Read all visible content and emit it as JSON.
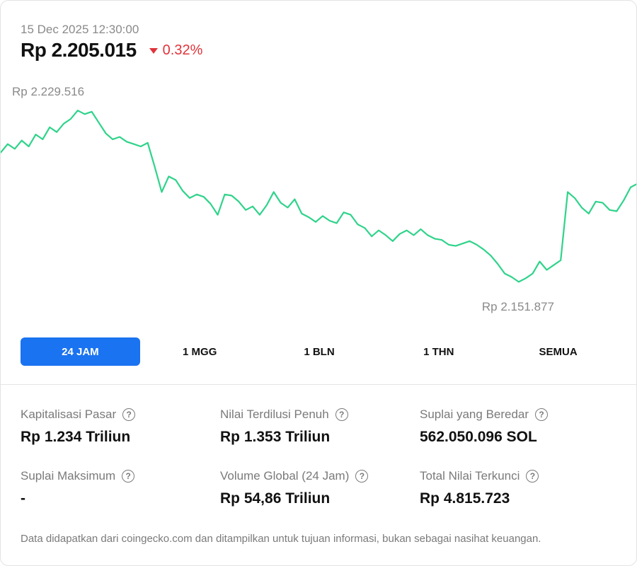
{
  "header": {
    "timestamp": "15 Dec 2025 12:30:00",
    "price": "Rp 2.205.015",
    "change": "0.32%",
    "change_direction": "down",
    "change_color": "#e0343b"
  },
  "chart_data": {
    "type": "line",
    "x_range": [
      "15 Dec 2025 12:30:00 minus 24h",
      "15 Dec 2025 12:30:00"
    ],
    "ylim": [
      2151877,
      2229516
    ],
    "line_color": "#2fd38a",
    "annotations": {
      "high": "Rp 2.229.516",
      "low": "Rp 2.151.877"
    },
    "series": [
      {
        "values": [
          2209000,
          2212500,
          2210500,
          2214000,
          2211500,
          2216500,
          2214500,
          2219500,
          2217500,
          2221000,
          2223000,
          2226500,
          2225000,
          2226000,
          2221500,
          2217000,
          2214500,
          2215500,
          2213500,
          2212500,
          2211500,
          2213000,
          2203000,
          2192500,
          2199000,
          2197500,
          2193000,
          2190000,
          2191500,
          2190500,
          2187500,
          2183000,
          2191500,
          2191000,
          2188500,
          2185000,
          2186500,
          2183000,
          2187000,
          2192500,
          2188000,
          2186000,
          2189500,
          2183500,
          2182000,
          2180000,
          2182500,
          2180500,
          2179500,
          2184000,
          2183000,
          2179000,
          2177500,
          2174000,
          2176500,
          2174500,
          2172000,
          2175000,
          2176500,
          2174500,
          2177000,
          2174500,
          2173000,
          2172500,
          2170500,
          2170000,
          2171000,
          2172000,
          2170500,
          2168500,
          2166000,
          2162500,
          2158500,
          2157000,
          2155000,
          2156500,
          2158500,
          2163500,
          2160000,
          2162000,
          2164000,
          2192500,
          2190000,
          2186000,
          2183500,
          2188500,
          2188000,
          2185000,
          2184500,
          2189000,
          2194500,
          2196000
        ]
      }
    ],
    "grid": false,
    "legend": "none"
  },
  "range_tabs": [
    {
      "label": "24 JAM",
      "active": true
    },
    {
      "label": "1 MGG",
      "active": false
    },
    {
      "label": "1 BLN",
      "active": false
    },
    {
      "label": "1 THN",
      "active": false
    },
    {
      "label": "SEMUA",
      "active": false
    }
  ],
  "stats": [
    {
      "label": "Kapitalisasi Pasar",
      "value": "Rp 1.234 Triliun"
    },
    {
      "label": "Nilai Terdilusi Penuh",
      "value": "Rp 1.353 Triliun"
    },
    {
      "label": "Suplai yang Beredar",
      "value": "562.050.096 SOL"
    },
    {
      "label": "Suplai Maksimum",
      "value": "-"
    },
    {
      "label": "Volume Global (24 Jam)",
      "value": "Rp 54,86 Triliun"
    },
    {
      "label": "Total Nilai Terkunci",
      "value": "Rp 4.815.723"
    }
  ],
  "help_icon": "question-circle-icon",
  "footnote": "Data didapatkan dari coingecko.com dan ditampilkan untuk tujuan informasi, bukan sebagai nasihat keuangan."
}
